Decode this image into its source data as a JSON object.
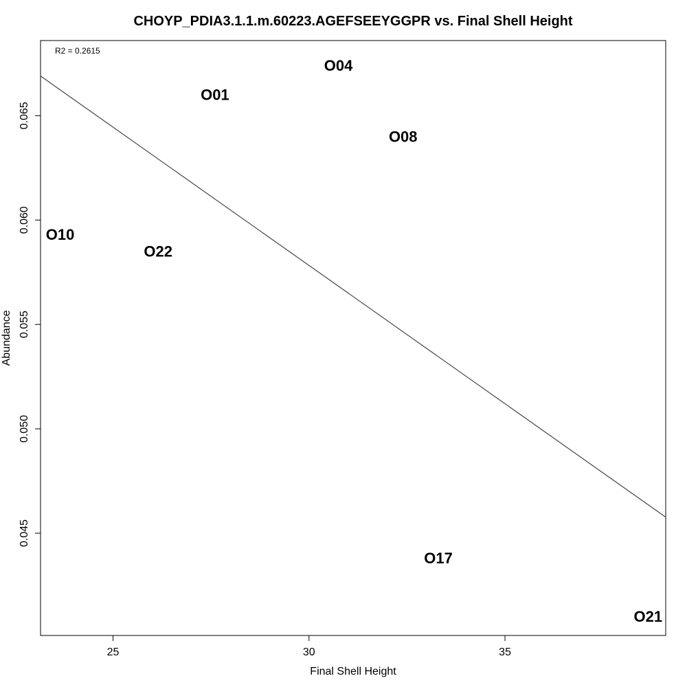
{
  "chart_data": {
    "type": "scatter",
    "title": "CHOYP_PDIA3.1.1.m.60223.AGEFSEEYGGPR vs. Final Shell Height",
    "xlabel": "Final Shell Height",
    "ylabel": "Abundance",
    "annotation": "R2 = 0.2615",
    "xlim": [
      23.15,
      39.1
    ],
    "ylim": [
      0.0401,
      0.0686
    ],
    "x_ticks": [
      25,
      30,
      35
    ],
    "y_ticks": [
      0.045,
      0.05,
      0.055,
      0.06,
      0.065
    ],
    "x_tick_labels": [
      "25",
      "30",
      "35"
    ],
    "y_tick_labels": [
      "0.045",
      "0.050",
      "0.055",
      "0.060",
      "0.065"
    ],
    "grid": false,
    "points": [
      {
        "label": "O01",
        "x": 27.6,
        "y": 0.066
      },
      {
        "label": "O04",
        "x": 30.75,
        "y": 0.0674
      },
      {
        "label": "O08",
        "x": 32.4,
        "y": 0.064
      },
      {
        "label": "O10",
        "x": 23.65,
        "y": 0.0593
      },
      {
        "label": "O22",
        "x": 26.15,
        "y": 0.0585
      },
      {
        "label": "O17",
        "x": 33.3,
        "y": 0.0438
      },
      {
        "label": "O21",
        "x": 38.65,
        "y": 0.041
      }
    ],
    "regression_line": {
      "x": [
        23.15,
        39.1
      ],
      "y": [
        0.0669,
        0.04577
      ]
    }
  }
}
